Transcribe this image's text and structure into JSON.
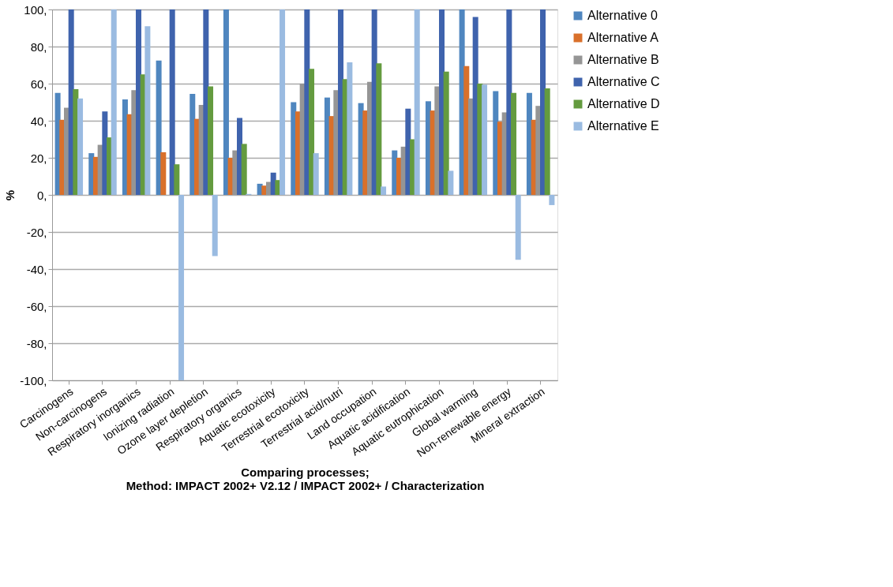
{
  "chart_data": {
    "type": "bar",
    "xlabel": "Comparing processes;\nMethod: IMPACT 2002+ V2.12 / IMPACT 2002+ / Characterization",
    "ylabel": "%",
    "categories": [
      "Carcinogens",
      "Non-carcinogens",
      "Respiratory inorganics",
      "Ionizing radiation",
      "Ozone layer depletion",
      "Respiratory organics",
      "Aquatic ecotoxicity",
      "Terrestrial ecotoxicity",
      "Terrestrial acid/nutri",
      "Land occupation",
      "Aquatic acidification",
      "Aquatic eutrophication",
      "Global warming",
      "Non-renewable energy",
      "Mineral extraction"
    ],
    "series": [
      {
        "name": "Alternative 0",
        "color": "#4f86bf",
        "values": [
          55,
          22.5,
          51.5,
          72.5,
          54.5,
          100,
          6,
          50,
          52.5,
          49.5,
          24,
          50.5,
          100,
          56,
          55
        ]
      },
      {
        "name": "Alternative A",
        "color": "#d9702b",
        "values": [
          40.5,
          20.5,
          43.5,
          23,
          41,
          20,
          5,
          45,
          42.5,
          45.5,
          20,
          45.5,
          69.5,
          39.5,
          40.5
        ]
      },
      {
        "name": "Alternative B",
        "color": "#959595",
        "values": [
          47,
          27,
          56.5,
          null,
          48.5,
          24,
          7,
          60,
          56.5,
          61,
          26,
          58.5,
          52,
          44.5,
          48
        ]
      },
      {
        "name": "Alternative C",
        "color": "#3f63ad",
        "values": [
          100,
          45,
          100,
          100,
          100,
          41.5,
          12,
          100,
          100,
          100,
          46.5,
          100,
          96,
          100,
          100
        ]
      },
      {
        "name": "Alternative D",
        "color": "#649b3f",
        "values": [
          57,
          31,
          65,
          16.5,
          58.5,
          27.5,
          8,
          68,
          62.5,
          71,
          30,
          66.5,
          60,
          55,
          57.5
        ]
      },
      {
        "name": "Alternative E",
        "color": "#9abbe1",
        "values": [
          52,
          100,
          91,
          -100,
          -33,
          0.5,
          100,
          22.5,
          71.5,
          4.5,
          100,
          13,
          59.5,
          -35,
          -5.5
        ]
      }
    ],
    "ylim": [
      -100,
      100
    ],
    "yticks": [
      {
        "value": -100,
        "label": "-100,"
      },
      {
        "value": -80,
        "label": "-80,"
      },
      {
        "value": -60,
        "label": "-60,"
      },
      {
        "value": -40,
        "label": "-40,"
      },
      {
        "value": -20,
        "label": "-20,"
      },
      {
        "value": 0,
        "label": "0,"
      },
      {
        "value": 20,
        "label": "20,"
      },
      {
        "value": 40,
        "label": "40,"
      },
      {
        "value": 60,
        "label": "60,"
      },
      {
        "value": 80,
        "label": "80,"
      },
      {
        "value": 100,
        "label": "100,"
      }
    ],
    "grid": "y",
    "legend": "right"
  }
}
